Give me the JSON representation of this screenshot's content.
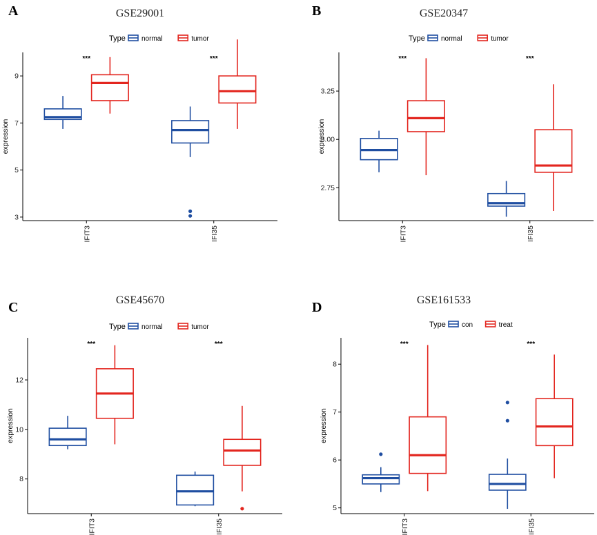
{
  "figure": {
    "group_colors": {
      "normal": "#1f4ea1",
      "tumor": "#e3261f"
    }
  },
  "chart_data": [
    {
      "type": "box",
      "letter": "A",
      "title": "GSE29001",
      "ylabel": "expression",
      "ylim": [
        2.85,
        10.0
      ],
      "yticks": [
        3,
        5,
        7,
        9
      ],
      "legend_title": "Type",
      "legend_entries": [
        "normal",
        "tumor"
      ],
      "categories": [
        "IFIT3",
        "IFI35"
      ],
      "significance": [
        "***",
        "***"
      ],
      "boxes": [
        [
          {
            "group": "normal",
            "whisker_low": 6.75,
            "q1": 7.15,
            "median": 7.25,
            "q3": 7.6,
            "whisker_high": 8.15,
            "outliers": []
          },
          {
            "group": "tumor",
            "whisker_low": 7.4,
            "q1": 7.95,
            "median": 8.7,
            "q3": 9.05,
            "whisker_high": 9.8,
            "outliers": []
          }
        ],
        [
          {
            "group": "normal",
            "whisker_low": 5.55,
            "q1": 6.15,
            "median": 6.7,
            "q3": 7.1,
            "whisker_high": 7.7,
            "outliers": [
              3.25,
              3.05
            ]
          },
          {
            "group": "tumor",
            "whisker_low": 6.75,
            "q1": 7.85,
            "median": 8.35,
            "q3": 9.0,
            "whisker_high": 10.55,
            "outliers": []
          }
        ]
      ]
    },
    {
      "type": "box",
      "letter": "B",
      "title": "GSE20347",
      "ylabel": "expression",
      "ylim": [
        2.58,
        3.45
      ],
      "yticks": [
        2.75,
        3.0,
        3.25
      ],
      "ytick_labels": [
        "2.75",
        "3.00",
        "3.25"
      ],
      "legend_title": "Type",
      "legend_entries": [
        "normal",
        "tumor"
      ],
      "categories": [
        "IFIT3",
        "IFI35"
      ],
      "significance": [
        "***",
        "***"
      ],
      "boxes": [
        [
          {
            "group": "normal",
            "whisker_low": 2.83,
            "q1": 2.895,
            "median": 2.945,
            "q3": 3.005,
            "whisker_high": 3.045,
            "outliers": []
          },
          {
            "group": "tumor",
            "whisker_low": 2.815,
            "q1": 3.04,
            "median": 3.11,
            "q3": 3.2,
            "whisker_high": 3.42,
            "outliers": []
          }
        ],
        [
          {
            "group": "normal",
            "whisker_low": 2.6,
            "q1": 2.655,
            "median": 2.67,
            "q3": 2.72,
            "whisker_high": 2.785,
            "outliers": []
          },
          {
            "group": "tumor",
            "whisker_low": 2.63,
            "q1": 2.83,
            "median": 2.865,
            "q3": 3.05,
            "whisker_high": 3.285,
            "outliers": []
          }
        ]
      ]
    },
    {
      "type": "box",
      "letter": "C",
      "title": "GSE45670",
      "ylabel": "expression",
      "ylim": [
        6.6,
        13.7
      ],
      "yticks": [
        8,
        10,
        12
      ],
      "legend_title": "Type",
      "legend_entries": [
        "normal",
        "tumor"
      ],
      "categories": [
        "IFIT3",
        "IFI35"
      ],
      "significance": [
        "***",
        "***"
      ],
      "boxes": [
        [
          {
            "group": "normal",
            "whisker_low": 9.2,
            "q1": 9.35,
            "median": 9.6,
            "q3": 10.05,
            "whisker_high": 10.55,
            "outliers": []
          },
          {
            "group": "tumor",
            "whisker_low": 9.4,
            "q1": 10.45,
            "median": 11.45,
            "q3": 12.45,
            "whisker_high": 13.4,
            "outliers": []
          }
        ],
        [
          {
            "group": "normal",
            "whisker_low": 6.9,
            "q1": 6.95,
            "median": 7.5,
            "q3": 8.15,
            "whisker_high": 8.3,
            "outliers": []
          },
          {
            "group": "tumor",
            "whisker_low": 7.5,
            "q1": 8.55,
            "median": 9.15,
            "q3": 9.6,
            "whisker_high": 10.95,
            "outliers": [
              6.8
            ]
          }
        ]
      ]
    },
    {
      "type": "box",
      "letter": "D",
      "title": "GSE161533",
      "ylabel": "expression",
      "ylim": [
        4.88,
        8.55
      ],
      "yticks": [
        5,
        6,
        7,
        8
      ],
      "legend_title": "Type",
      "legend_entries": [
        "con",
        "treat"
      ],
      "categories": [
        "IFIT3",
        "IFI35"
      ],
      "significance": [
        "***",
        "***"
      ],
      "boxes": [
        [
          {
            "group": "con",
            "whisker_low": 5.33,
            "q1": 5.5,
            "median": 5.62,
            "q3": 5.69,
            "whisker_high": 5.85,
            "outliers": [
              6.12
            ]
          },
          {
            "group": "treat",
            "whisker_low": 5.35,
            "q1": 5.72,
            "median": 6.1,
            "q3": 6.9,
            "whisker_high": 8.4,
            "outliers": []
          }
        ],
        [
          {
            "group": "con",
            "whisker_low": 4.98,
            "q1": 5.37,
            "median": 5.5,
            "q3": 5.7,
            "whisker_high": 6.03,
            "outliers": [
              6.82,
              7.2
            ]
          },
          {
            "group": "treat",
            "whisker_low": 5.62,
            "q1": 6.3,
            "median": 6.7,
            "q3": 7.28,
            "whisker_high": 8.2,
            "outliers": []
          }
        ]
      ]
    }
  ]
}
